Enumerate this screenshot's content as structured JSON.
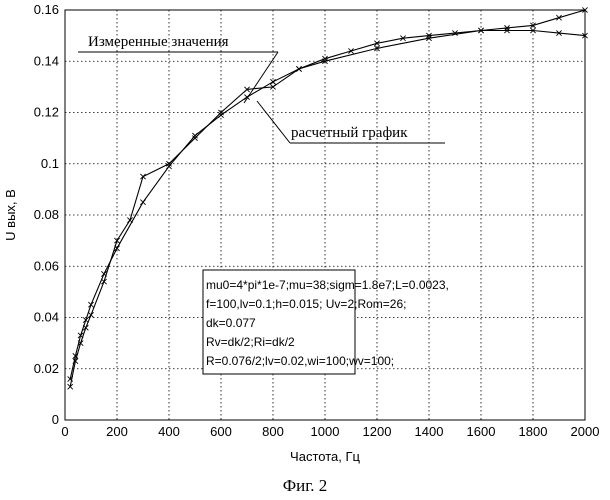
{
  "chart_data": {
    "type": "line",
    "xlabel": "Частота, Гц",
    "ylabel": "U вых, В",
    "xlim": [
      0,
      2000
    ],
    "ylim": [
      0,
      0.16
    ],
    "x_ticks": [
      0,
      200,
      400,
      600,
      800,
      1000,
      1200,
      1400,
      1600,
      1800,
      2000
    ],
    "y_ticks": [
      0,
      0.02,
      0.04,
      0.06,
      0.08,
      0.1,
      0.12,
      0.14,
      0.16
    ],
    "x_tick_labels": [
      "0",
      "200",
      "400",
      "600",
      "800",
      "1000",
      "1200",
      "1400",
      "1600",
      "1800",
      "2000"
    ],
    "y_tick_labels": [
      "0",
      "0.02",
      "0.04",
      "0.06",
      "0.08",
      "0.1",
      "0.12",
      "0.14",
      "0.16"
    ],
    "grid": true,
    "series": [
      {
        "marker": "x",
        "x": [
          20,
          40,
          60,
          80,
          100,
          150,
          200,
          250,
          300,
          400,
          500,
          600,
          700,
          800,
          900,
          1000,
          1200,
          1400,
          1600,
          1700,
          1800,
          1900,
          2000
        ],
        "y": [
          0.013,
          0.023,
          0.03,
          0.036,
          0.041,
          0.054,
          0.07,
          0.078,
          0.095,
          0.1,
          0.11,
          0.12,
          0.129,
          0.13,
          0.137,
          0.14,
          0.145,
          0.149,
          0.152,
          0.153,
          0.154,
          0.157,
          0.16
        ]
      },
      {
        "marker": "x",
        "x": [
          20,
          40,
          60,
          80,
          100,
          150,
          200,
          300,
          400,
          500,
          600,
          700,
          800,
          900,
          1000,
          1100,
          1200,
          1300,
          1400,
          1500,
          1600,
          1700,
          1800,
          1900,
          2000
        ],
        "y": [
          0.016,
          0.025,
          0.033,
          0.039,
          0.045,
          0.057,
          0.067,
          0.085,
          0.099,
          0.111,
          0.119,
          0.126,
          0.132,
          0.137,
          0.141,
          0.144,
          0.147,
          0.149,
          0.15,
          0.151,
          0.152,
          0.152,
          0.152,
          0.151,
          0.15
        ]
      }
    ],
    "annotations": [
      "Измеренные значения",
      "расчетный график"
    ],
    "parameters": [
      "mu0=4*pi*1e-7;mu=38;sigm=1.8e7;L=0.0023,",
      "f=100,lv=0.1;h=0.015; Uv=2;Rom=26;",
      "dk=0.077",
      "Rv=dk/2;Ri=dk/2",
      "R=0.076/2;lv=0.02,wi=100;wv=100;"
    ]
  },
  "figure_caption": "Фиг. 2"
}
